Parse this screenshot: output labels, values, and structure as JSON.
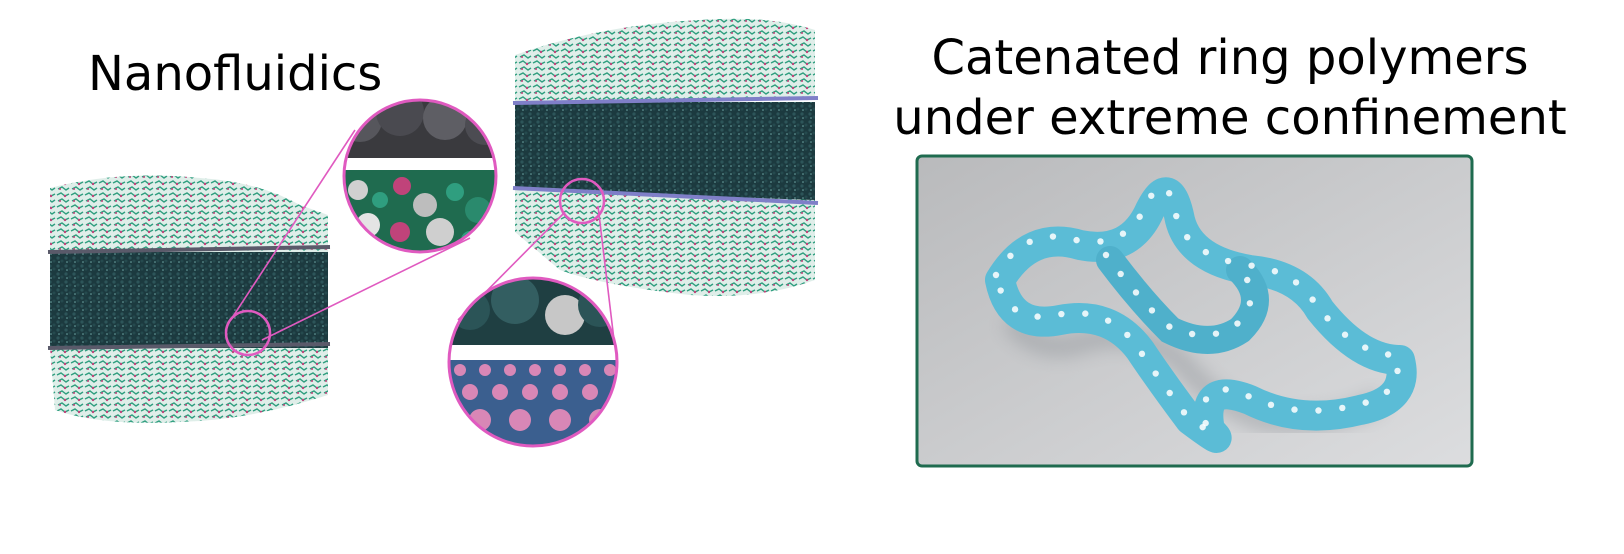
{
  "labels": {
    "left_title": "Nanofluidics",
    "right_title_line1": "Catenated ring polymers",
    "right_title_line2": "under extreme confinement"
  },
  "colors": {
    "polymer_green": "#2f9e7f",
    "oxygen_pink": "#c0437a",
    "water_dark": "#1c3a3f",
    "water_highlight": "#6fa7a6",
    "graphene_sheet": "#5a5a6a",
    "hbn_sheet": "#7f7fc8",
    "zoom_circle": "#e05ac0",
    "ring_polymer": "#5bbcd6",
    "panel_border": "#1f6b4f",
    "panel_background": "#c9cacc"
  },
  "icons": {
    "left_slab": "molecular-slab-graphene",
    "right_slab": "molecular-slab-hbn",
    "zoom_top": "magnified-interface-polymer",
    "zoom_bottom": "magnified-interface-lattice",
    "ring_render": "catenated-ring-render"
  }
}
